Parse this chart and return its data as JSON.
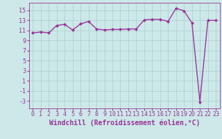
{
  "x": [
    0,
    1,
    2,
    3,
    4,
    5,
    6,
    7,
    8,
    9,
    10,
    11,
    12,
    13,
    14,
    15,
    16,
    17,
    18,
    19,
    20,
    21,
    22,
    23
  ],
  "y": [
    10.5,
    10.7,
    10.5,
    12.0,
    12.2,
    11.1,
    12.3,
    12.8,
    11.3,
    11.1,
    11.2,
    11.2,
    11.3,
    11.3,
    13.1,
    13.2,
    13.2,
    12.8,
    15.4,
    14.9,
    12.5,
    -3.2,
    13.0,
    13.0
  ],
  "line_color": "#993399",
  "marker": "D",
  "marker_size": 2,
  "bg_color": "#cce8e8",
  "grid_color": "#aacccc",
  "xlabel": "Windchill (Refroidissement éolien,°C)",
  "xlabel_color": "#993399",
  "xlabel_fontsize": 7,
  "yticks": [
    -3,
    -1,
    1,
    3,
    5,
    7,
    9,
    11,
    13,
    15
  ],
  "xticks": [
    0,
    1,
    2,
    3,
    4,
    5,
    6,
    7,
    8,
    9,
    10,
    11,
    12,
    13,
    14,
    15,
    16,
    17,
    18,
    19,
    20,
    21,
    22,
    23
  ],
  "ylim": [
    -4.5,
    16.5
  ],
  "xlim": [
    -0.5,
    23.5
  ],
  "tick_fontsize": 6,
  "tick_color": "#993399",
  "spine_color": "#993399",
  "linewidth": 1.0
}
